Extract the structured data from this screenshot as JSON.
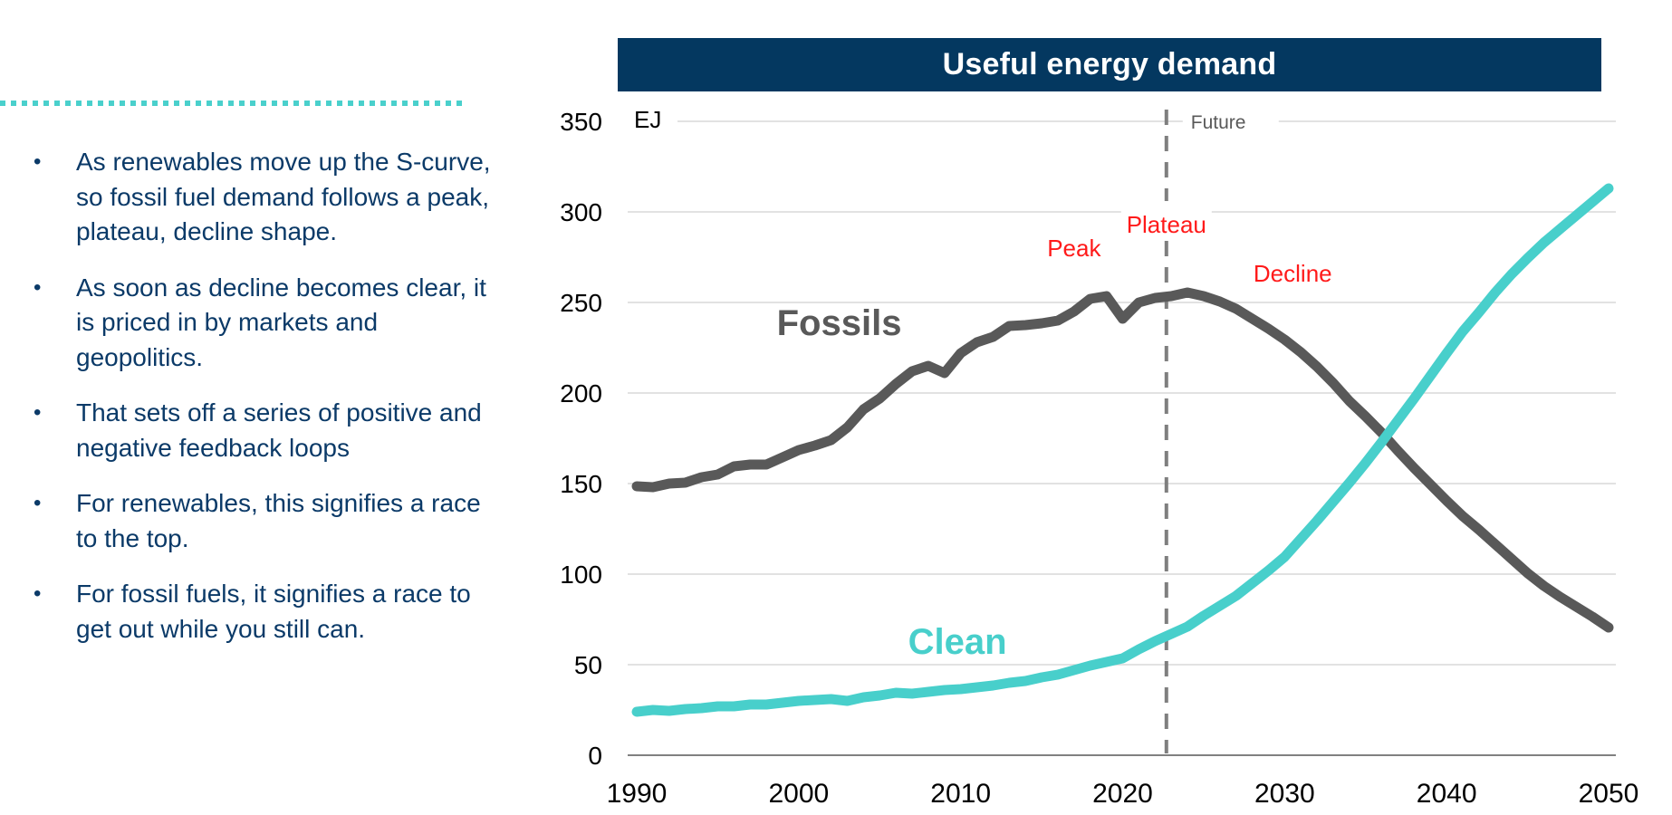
{
  "colors": {
    "accent_teal": "#4ad0cc",
    "header_navy": "#043860",
    "text_navy": "#0b3a68",
    "fossils": "#595959",
    "clean": "#48cfcb",
    "phase_red": "#ff1a1a",
    "gridline": "#d9d9d9",
    "future_divider": "#7f7f7f"
  },
  "bullets": [
    "As renewables move up the S-curve, so fossil fuel demand follows a peak, plateau, decline shape.",
    "As soon as decline becomes clear, it is priced in by markets and geopolitics.",
    "That sets off a series of positive and negative feedback loops",
    "For renewables, this signifies a race to the top.",
    "For fossil fuels, it signifies a race to get out while you still can."
  ],
  "bullet_symbol": "•",
  "chart_data": {
    "type": "line",
    "title": "Useful energy demand",
    "xlabel": "",
    "ylabel": "EJ",
    "xlim": [
      1990,
      2050
    ],
    "ylim": [
      0,
      350
    ],
    "xticks": [
      1990,
      2000,
      2010,
      2020,
      2030,
      2040,
      2050
    ],
    "yticks": [
      0,
      50,
      100,
      150,
      200,
      250,
      300,
      350
    ],
    "grid": true,
    "legend": "inline labels",
    "divider": {
      "x": 2022.7,
      "label": "Future",
      "style": "dashed"
    },
    "annotations": [
      {
        "text": "Peak",
        "x": 2017,
        "y": 280
      },
      {
        "text": "Plateau",
        "x": 2022.7,
        "y": 293
      },
      {
        "text": "Decline",
        "x": 2030.5,
        "y": 266
      }
    ],
    "series": [
      {
        "name": "Fossils",
        "label_pos": {
          "x": 2002.5,
          "y": 239
        },
        "x": [
          1990,
          1991,
          1992,
          1993,
          1994,
          1995,
          1996,
          1997,
          1998,
          1999,
          2000,
          2001,
          2002,
          2003,
          2004,
          2005,
          2006,
          2007,
          2008,
          2009,
          2010,
          2011,
          2012,
          2013,
          2014,
          2015,
          2016,
          2017,
          2018,
          2019,
          2020,
          2021,
          2022,
          2023,
          2024,
          2025,
          2026,
          2027,
          2028,
          2029,
          2030,
          2031,
          2032,
          2033,
          2034,
          2035,
          2036,
          2037,
          2038,
          2039,
          2040,
          2041,
          2042,
          2043,
          2044,
          2045,
          2046,
          2047,
          2048,
          2049,
          2050
        ],
        "values": [
          148.5,
          148,
          150,
          150.5,
          153.5,
          155,
          159.5,
          160.5,
          160.5,
          164.5,
          168.5,
          171,
          174,
          181,
          191,
          197,
          205,
          212,
          215,
          211,
          222,
          228,
          231,
          237,
          237.5,
          238.5,
          240,
          245,
          252,
          253.5,
          241,
          250,
          252.5,
          253.5,
          255.5,
          253.5,
          250.5,
          246.5,
          241,
          235.5,
          229.5,
          222.5,
          214.5,
          205.5,
          195.5,
          187,
          178,
          168,
          158.5,
          149.5,
          140.5,
          132,
          124.5,
          116.5,
          108.5,
          100.5,
          93.5,
          87.5,
          82,
          76.5,
          70.5
        ]
      },
      {
        "name": "Clean",
        "label_pos": {
          "x": 2009.8,
          "y": 63
        },
        "x": [
          1990,
          1991,
          1992,
          1993,
          1994,
          1995,
          1996,
          1997,
          1998,
          1999,
          2000,
          2001,
          2002,
          2003,
          2004,
          2005,
          2006,
          2007,
          2008,
          2009,
          2010,
          2011,
          2012,
          2013,
          2014,
          2015,
          2016,
          2017,
          2018,
          2019,
          2020,
          2021,
          2022,
          2023,
          2024,
          2025,
          2026,
          2027,
          2028,
          2029,
          2030,
          2031,
          2032,
          2033,
          2034,
          2035,
          2036,
          2037,
          2038,
          2039,
          2040,
          2041,
          2042,
          2043,
          2044,
          2045,
          2046,
          2047,
          2048,
          2049,
          2050
        ],
        "values": [
          24,
          25,
          24.5,
          25.5,
          26,
          27,
          27,
          28,
          28,
          29,
          30,
          30.5,
          31,
          30,
          32,
          33,
          34.5,
          34,
          35,
          36,
          36.5,
          37.5,
          38.5,
          40,
          41,
          43,
          44.5,
          47,
          49.5,
          51.5,
          53.5,
          58.5,
          63,
          67,
          71,
          77,
          82.5,
          88,
          95,
          102,
          109.5,
          119.5,
          129.5,
          140,
          150.5,
          161.5,
          173,
          185,
          197,
          209.5,
          222,
          234,
          244.5,
          255.5,
          265.5,
          274.5,
          283,
          290.5,
          298,
          305.5,
          313
        ]
      }
    ]
  }
}
